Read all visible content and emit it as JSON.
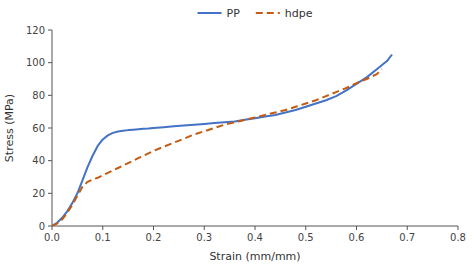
{
  "chart_data": {
    "type": "line",
    "xlabel": "Strain (mm/mm)",
    "ylabel": "Stress (MPa)",
    "xlim": [
      0,
      0.8
    ],
    "ylim": [
      0,
      120
    ],
    "xticks": [
      {
        "value": 0.0,
        "label": "0.0"
      },
      0.1,
      0.2,
      0.3,
      0.4,
      0.5,
      0.6,
      0.7,
      0.8
    ],
    "yticks": [
      0,
      20,
      40,
      60,
      80,
      100,
      120
    ],
    "grid": false,
    "legend": "top",
    "series": [
      {
        "name": "PP",
        "color": "#4472C4",
        "line_style": "solid",
        "x": [
          0.0,
          0.01,
          0.02,
          0.03,
          0.04,
          0.05,
          0.06,
          0.07,
          0.08,
          0.09,
          0.1,
          0.11,
          0.12,
          0.13,
          0.14,
          0.15,
          0.16,
          0.17,
          0.18,
          0.19,
          0.2,
          0.22,
          0.24,
          0.26,
          0.28,
          0.3,
          0.32,
          0.34,
          0.36,
          0.38,
          0.4,
          0.42,
          0.44,
          0.46,
          0.48,
          0.5,
          0.52,
          0.54,
          0.56,
          0.58,
          0.6,
          0.62,
          0.64,
          0.66,
          0.67
        ],
        "values": [
          0.0,
          2.0,
          5.0,
          9.0,
          14.0,
          20.0,
          28.0,
          36.0,
          43.0,
          49.0,
          53.0,
          55.5,
          57.0,
          57.8,
          58.3,
          58.7,
          59.0,
          59.3,
          59.5,
          59.7,
          60.0,
          60.5,
          61.0,
          61.5,
          62.0,
          62.5,
          63.0,
          63.5,
          64.0,
          65.0,
          66.0,
          67.0,
          68.0,
          69.5,
          71.0,
          73.0,
          75.0,
          77.0,
          79.5,
          83.0,
          87.0,
          91.0,
          96.0,
          101.0,
          105.0
        ]
      },
      {
        "name": "hdpe",
        "color": "#C55A11",
        "line_style": "dashed",
        "x": [
          0.0,
          0.01,
          0.02,
          0.03,
          0.04,
          0.05,
          0.06,
          0.07,
          0.08,
          0.09,
          0.1,
          0.11,
          0.12,
          0.13,
          0.14,
          0.15,
          0.16,
          0.17,
          0.18,
          0.19,
          0.2,
          0.22,
          0.24,
          0.26,
          0.28,
          0.3,
          0.32,
          0.34,
          0.36,
          0.38,
          0.4,
          0.42,
          0.44,
          0.46,
          0.48,
          0.5,
          0.52,
          0.54,
          0.56,
          0.58,
          0.6,
          0.62,
          0.64,
          0.65
        ],
        "values": [
          0.0,
          1.5,
          4.0,
          8.0,
          13.0,
          18.5,
          24.0,
          27.0,
          28.5,
          29.5,
          31.0,
          32.5,
          34.0,
          35.5,
          37.0,
          38.5,
          40.0,
          41.5,
          43.0,
          44.5,
          46.0,
          48.5,
          51.0,
          53.5,
          56.0,
          58.0,
          60.0,
          62.0,
          63.5,
          65.0,
          66.5,
          68.0,
          69.5,
          71.0,
          73.0,
          75.0,
          77.0,
          79.5,
          82.0,
          84.5,
          87.5,
          90.0,
          93.0,
          96.0
        ]
      }
    ]
  }
}
